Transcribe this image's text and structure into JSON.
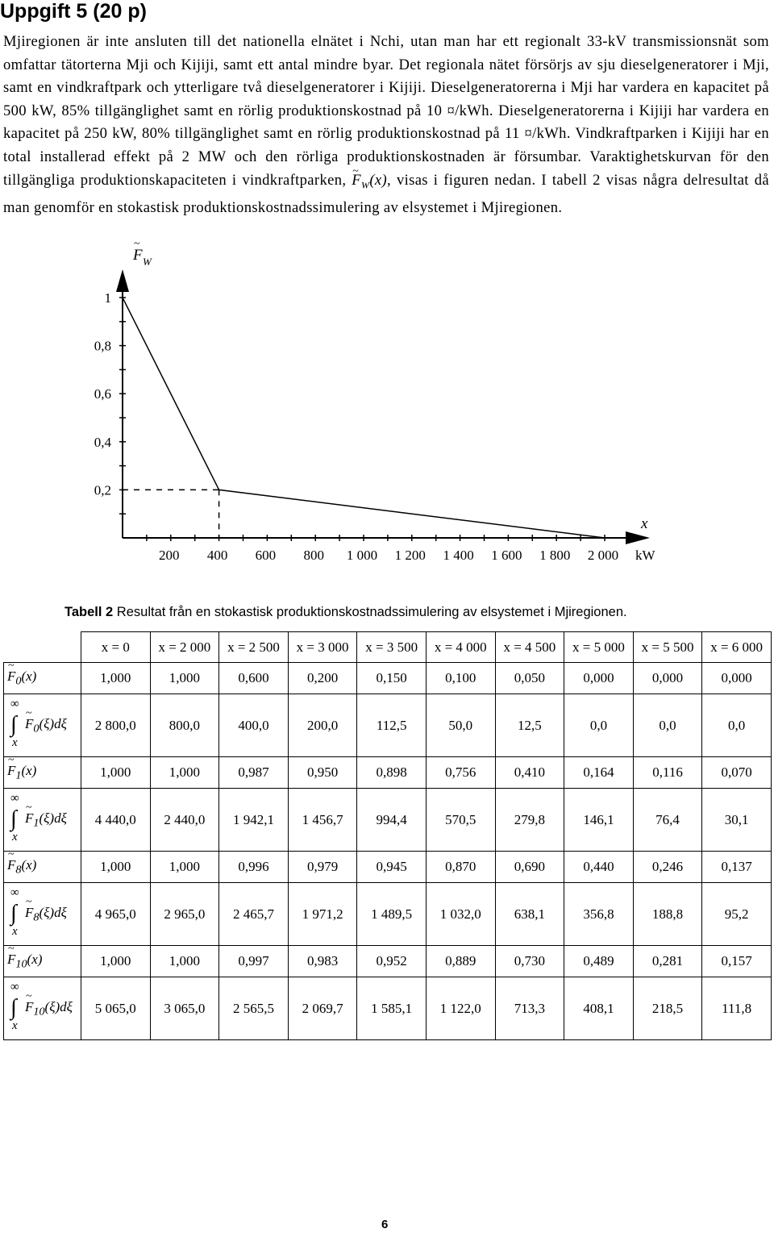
{
  "heading": "Uppgift 5 (20 p)",
  "paragraph": {
    "part1": "Mjiregionen är inte ansluten till det nationella elnätet i Nchi, utan man har ett regionalt 33-kV transmissionsnät som omfattar tätorterna Mji och Kijiji, samt ett antal mindre byar. Det regionala nätet försörjs av sju dieselgeneratorer i Mji, samt en vindkraftpark och ytterligare två dieselgeneratorer i Kijiji. Dieselgeneratorerna i Mji har vardera en kapacitet på 500 kW, 85% tillgänglighet samt en rörlig produktionskostnad på 10 ¤/kWh. Dieselgeneratorerna i Kijiji har vardera en kapacitet på 250 kW, 80% tillgänglighet samt en rörlig produktionskostnad på 11 ¤/kWh. Vindkraftparken i Kijiji har en total installerad effekt på 2 MW och den rörliga produktionskostnaden är försumbar. Varaktighetskurvan för den tillgängliga produktionskapaciteten i vindkraftparken,",
    "symbol": "F",
    "symbol_sub": "W",
    "symbol_arg": "(x)",
    "part2": ", visas i figuren nedan. I tabell 2 visas några delresultat då man genomför en stokastisk produktionskostnadssimulering av elsystemet i Mjiregionen."
  },
  "chart_data": {
    "type": "line",
    "y_axis_symbol": "F",
    "y_axis_subscript": "W",
    "x_axis_symbol": "x",
    "x_unit": "kW",
    "x_ticks": [
      200,
      400,
      600,
      800,
      1000,
      1200,
      1400,
      1600,
      1800,
      2000
    ],
    "x_tick_labels": [
      "200",
      "400",
      "600",
      "800",
      "1 000",
      "1 200",
      "1 400",
      "1 600",
      "1 800",
      "2 000"
    ],
    "y_ticks": [
      0.2,
      0.4,
      0.6,
      0.8,
      1
    ],
    "y_tick_labels": [
      "0,2",
      "0,4",
      "0,6",
      "0,8",
      "1"
    ],
    "xlim": [
      0,
      2050
    ],
    "ylim": [
      0,
      1.1
    ],
    "series": [
      {
        "x": [
          0,
          400,
          2000
        ],
        "y": [
          1,
          0.2,
          0
        ]
      }
    ],
    "reference_lines": [
      {
        "from": [
          0,
          0.2
        ],
        "to": [
          400,
          0.2
        ],
        "style": "dashed"
      },
      {
        "from": [
          400,
          0.2
        ],
        "to": [
          400,
          0
        ],
        "style": "dashed"
      }
    ]
  },
  "table": {
    "caption_label": "Tabell 2",
    "caption_text": " Resultat från en stokastisk produktionskostnadssimulering av elsystemet i Mjiregionen.",
    "columns": [
      "x = 0",
      "x = 2 000",
      "x = 2 500",
      "x = 3 000",
      "x = 3 500",
      "x = 4 000",
      "x = 4 500",
      "x = 5 000",
      "x = 5 500",
      "x = 6 000"
    ],
    "rows": [
      {
        "kind": "F",
        "symbol": "F",
        "index": "0",
        "arg": "(x)",
        "values": [
          "1,000",
          "1,000",
          "0,600",
          "0,200",
          "0,150",
          "0,100",
          "0,050",
          "0,000",
          "0,000",
          "0,000"
        ]
      },
      {
        "kind": "int",
        "symbol": "F",
        "index": "0",
        "upper": "∞",
        "sign": "∫",
        "arg": "(ξ)dξ",
        "lower": "x",
        "values": [
          "2 800,0",
          "800,0",
          "400,0",
          "200,0",
          "112,5",
          "50,0",
          "12,5",
          "0,0",
          "0,0",
          "0,0"
        ]
      },
      {
        "kind": "F",
        "symbol": "F",
        "index": "1",
        "arg": "(x)",
        "values": [
          "1,000",
          "1,000",
          "0,987",
          "0,950",
          "0,898",
          "0,756",
          "0,410",
          "0,164",
          "0,116",
          "0,070"
        ]
      },
      {
        "kind": "int",
        "symbol": "F",
        "index": "1",
        "upper": "∞",
        "sign": "∫",
        "arg": "(ξ)dξ",
        "lower": "x",
        "values": [
          "4 440,0",
          "2 440,0",
          "1 942,1",
          "1 456,7",
          "994,4",
          "570,5",
          "279,8",
          "146,1",
          "76,4",
          "30,1"
        ]
      },
      {
        "kind": "F",
        "symbol": "F",
        "index": "8",
        "arg": "(x)",
        "values": [
          "1,000",
          "1,000",
          "0,996",
          "0,979",
          "0,945",
          "0,870",
          "0,690",
          "0,440",
          "0,246",
          "0,137"
        ]
      },
      {
        "kind": "int",
        "symbol": "F",
        "index": "8",
        "upper": "∞",
        "sign": "∫",
        "arg": "(ξ)dξ",
        "lower": "x",
        "values": [
          "4 965,0",
          "2 965,0",
          "2 465,7",
          "1 971,2",
          "1 489,5",
          "1 032,0",
          "638,1",
          "356,8",
          "188,8",
          "95,2"
        ]
      },
      {
        "kind": "F",
        "symbol": "F",
        "index": "10",
        "arg": "(x)",
        "values": [
          "1,000",
          "1,000",
          "0,997",
          "0,983",
          "0,952",
          "0,889",
          "0,730",
          "0,489",
          "0,281",
          "0,157"
        ]
      },
      {
        "kind": "int",
        "symbol": "F",
        "index": "10",
        "upper": "∞",
        "sign": "∫",
        "arg": "(ξ)dξ",
        "lower": "x",
        "values": [
          "5 065,0",
          "3 065,0",
          "2 565,5",
          "2 069,7",
          "1 585,1",
          "1 122,0",
          "713,3",
          "408,1",
          "218,5",
          "111,8"
        ]
      }
    ]
  },
  "page_number": "6"
}
